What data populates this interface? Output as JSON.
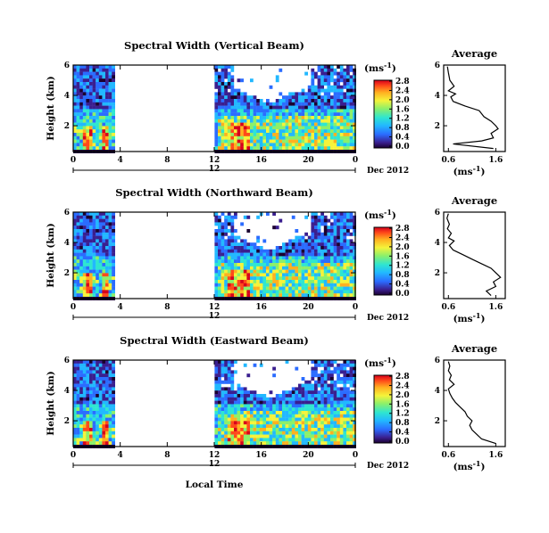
{
  "figure": {
    "date_label": "Dec 2012",
    "xlabel": "Local Time",
    "ylabel": "Height (km)",
    "colorbar_unit": "(ms",
    "colorbar_unit_exp": "-1",
    "colorbar_unit_close": ")",
    "average_title": "Average",
    "average_unit": "(ms",
    "average_unit_exp": "-1",
    "average_unit_close": ")",
    "secondary_tick": "12"
  },
  "chart_data": [
    {
      "type": "heatmap",
      "title": "Spectral Width (Vertical Beam)",
      "xlabel": "",
      "ylabel": "Height (km)",
      "x_tick_labels": [
        "0",
        "4",
        "8",
        "12",
        "16",
        "20",
        "0"
      ],
      "x_range_hours": [
        0,
        24
      ],
      "y_tick_labels": [
        "2",
        "4",
        "6"
      ],
      "y_range_km": [
        0.3,
        6.0
      ],
      "colorbar_ticks": [
        "0.0",
        "0.4",
        "0.8",
        "1.2",
        "1.6",
        "2.0",
        "2.4",
        "2.8"
      ],
      "colorbar_range": [
        0.0,
        3.0
      ],
      "data_gaps_hours": [
        [
          3.3,
          12.0
        ]
      ],
      "average_profile": {
        "title": "Average",
        "x_tick_labels": [
          "0.6",
          "1.6"
        ],
        "x_range": [
          0.5,
          1.8
        ],
        "height_km": [
          0.5,
          0.8,
          1.0,
          1.2,
          1.5,
          1.8,
          2.0,
          2.3,
          2.6,
          3.0,
          3.3,
          3.6,
          3.9,
          4.1,
          4.3,
          4.6,
          5.0,
          5.5,
          5.9
        ],
        "spectral_width": [
          1.55,
          0.7,
          1.3,
          1.55,
          1.5,
          1.65,
          1.6,
          1.5,
          1.35,
          1.25,
          0.95,
          0.7,
          0.65,
          0.75,
          0.6,
          0.72,
          0.63,
          0.6,
          0.58
        ]
      }
    },
    {
      "type": "heatmap",
      "title": "Spectral Width (Northward Beam)",
      "xlabel": "",
      "ylabel": "Height (km)",
      "x_tick_labels": [
        "0",
        "4",
        "8",
        "12",
        "16",
        "20",
        "0"
      ],
      "x_range_hours": [
        0,
        24
      ],
      "y_tick_labels": [
        "2",
        "4",
        "6"
      ],
      "y_range_km": [
        0.3,
        6.0
      ],
      "colorbar_ticks": [
        "0.0",
        "0.4",
        "0.8",
        "1.2",
        "1.6",
        "2.0",
        "2.4",
        "2.8"
      ],
      "colorbar_range": [
        0.0,
        3.0
      ],
      "data_gaps_hours": [
        [
          3.3,
          12.0
        ]
      ],
      "average_profile": {
        "title": "Average",
        "x_tick_labels": [
          "0.6",
          "1.6"
        ],
        "x_range": [
          0.5,
          1.8
        ],
        "height_km": [
          0.5,
          0.8,
          1.1,
          1.4,
          1.7,
          2.0,
          2.3,
          2.6,
          2.9,
          3.2,
          3.5,
          3.8,
          4.1,
          4.3,
          4.6,
          4.9,
          5.2,
          5.6,
          5.9
        ],
        "spectral_width": [
          1.5,
          1.4,
          1.6,
          1.55,
          1.7,
          1.6,
          1.5,
          1.3,
          1.1,
          0.9,
          0.7,
          0.62,
          0.72,
          0.6,
          0.66,
          0.58,
          0.62,
          0.57,
          0.6
        ]
      }
    },
    {
      "type": "heatmap",
      "title": "Spectral Width (Eastward Beam)",
      "xlabel": "Local Time",
      "ylabel": "Height (km)",
      "x_tick_labels": [
        "0",
        "4",
        "8",
        "12",
        "16",
        "20",
        "0"
      ],
      "x_range_hours": [
        0,
        24
      ],
      "y_tick_labels": [
        "2",
        "4",
        "6"
      ],
      "y_range_km": [
        0.3,
        6.0
      ],
      "colorbar_ticks": [
        "0.0",
        "0.4",
        "0.8",
        "1.2",
        "1.6",
        "2.0",
        "2.4",
        "2.8"
      ],
      "colorbar_range": [
        0.0,
        3.0
      ],
      "data_gaps_hours": [
        [
          3.3,
          12.0
        ]
      ],
      "average_profile": {
        "title": "Average",
        "x_tick_labels": [
          "0.6",
          "1.6"
        ],
        "x_range": [
          0.5,
          1.8
        ],
        "height_km": [
          0.5,
          0.8,
          1.1,
          1.4,
          1.7,
          2.0,
          2.3,
          2.6,
          2.9,
          3.2,
          3.5,
          3.8,
          4.1,
          4.4,
          4.7,
          5.0,
          5.3,
          5.6,
          5.9
        ],
        "spectral_width": [
          1.6,
          1.3,
          1.2,
          1.1,
          1.05,
          1.1,
          1.0,
          0.95,
          0.85,
          0.75,
          0.68,
          0.63,
          0.6,
          0.72,
          0.62,
          0.66,
          0.6,
          0.63,
          0.6
        ]
      }
    }
  ],
  "colormap": [
    "#1a0030",
    "#3a1f8f",
    "#2b6cff",
    "#22b8ff",
    "#2fe6d0",
    "#8cf06a",
    "#f5f33a",
    "#ffb020",
    "#ff4a1a",
    "#d6001c"
  ]
}
